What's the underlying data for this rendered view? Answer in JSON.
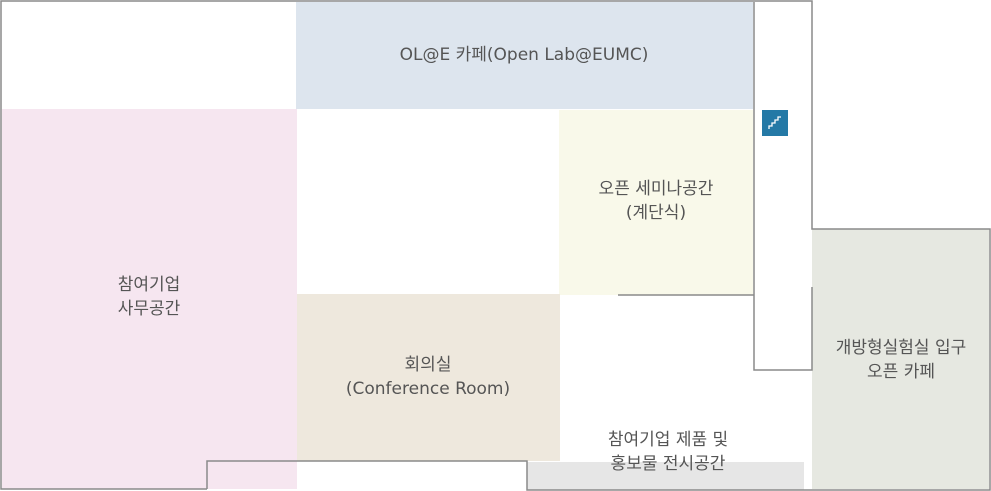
{
  "colors": {
    "cafe": "#dde5ee",
    "office": "#f6e6f0",
    "seminar": "#f9f9ea",
    "meeting": "#eee8dd",
    "entrance": "#e6e8e1",
    "exhibit": "#e6e6e6",
    "wall": "#8a8a8a",
    "text": "#555555",
    "stair": "#2479a6"
  },
  "rooms": {
    "cafe": {
      "lines": [
        "OL@E 카페(Open Lab@EUMC)"
      ]
    },
    "office": {
      "lines": [
        "참여기업",
        "사무공간"
      ]
    },
    "seminar": {
      "lines": [
        "오픈 세미나공간",
        "(계단식)"
      ]
    },
    "meeting": {
      "lines": [
        "회의실",
        "(Conference Room)"
      ]
    },
    "entrance": {
      "lines": [
        "개방형실험실 입구",
        "오픈 카페"
      ]
    },
    "exhibit": {
      "lines": [
        "참여기업 제품 및",
        "홍보물 전시공간"
      ]
    }
  },
  "icons": {
    "stair": "stairs-icon"
  }
}
